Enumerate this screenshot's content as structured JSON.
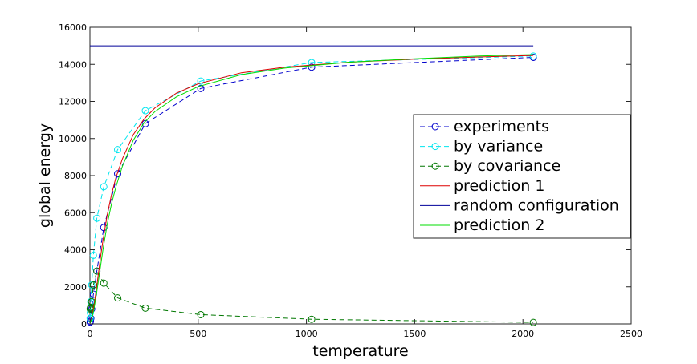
{
  "chart_data": {
    "type": "line",
    "title": "",
    "xlabel": "temperature",
    "ylabel": "global energy",
    "xlim": [
      0,
      2500
    ],
    "ylim": [
      0,
      16000
    ],
    "xticks": [
      0,
      500,
      1000,
      1500,
      2000,
      2500
    ],
    "yticks": [
      0,
      2000,
      4000,
      6000,
      8000,
      10000,
      12000,
      14000,
      16000
    ],
    "grid": false,
    "legend_position": "right",
    "series": [
      {
        "name": "experiments",
        "color": "#0000cc",
        "style": "dashed",
        "marker": "circle",
        "x": [
          1,
          2,
          4,
          8,
          16,
          32,
          64,
          128,
          256,
          512,
          1024,
          2048
        ],
        "y": [
          100,
          150,
          300,
          800,
          1600,
          2850,
          5200,
          8100,
          10800,
          12700,
          13850,
          14380
        ]
      },
      {
        "name": "by variance",
        "color": "#00e5ee",
        "style": "dashed",
        "marker": "circle",
        "x": [
          1,
          2,
          4,
          8,
          16,
          32,
          64,
          128,
          256,
          512,
          1024,
          2048
        ],
        "y": [
          300,
          600,
          1200,
          2100,
          3700,
          5700,
          7400,
          9400,
          11500,
          13100,
          14100,
          14450
        ]
      },
      {
        "name": "by covariance",
        "color": "#007700",
        "style": "dashed",
        "marker": "circle",
        "x": [
          1,
          2,
          4,
          8,
          16,
          32,
          64,
          128,
          256,
          512,
          1024,
          2048
        ],
        "y": [
          800,
          850,
          900,
          1200,
          2100,
          2850,
          2200,
          1400,
          850,
          500,
          250,
          80
        ]
      },
      {
        "name": "prediction 1",
        "color": "#dd0000",
        "style": "solid",
        "marker": "none",
        "x": [
          1,
          5,
          10,
          20,
          30,
          40,
          50,
          60,
          70,
          80,
          100,
          120,
          150,
          200,
          250,
          300,
          400,
          500,
          700,
          900,
          1200,
          1500,
          1800,
          2048
        ],
        "y": [
          50,
          200,
          450,
          1100,
          1900,
          2800,
          3700,
          4500,
          5200,
          5900,
          7000,
          7900,
          8900,
          10200,
          11050,
          11650,
          12450,
          12950,
          13550,
          13850,
          14120,
          14280,
          14400,
          14480
        ]
      },
      {
        "name": "random configuration",
        "color": "#000099",
        "style": "solid",
        "marker": "none",
        "x": [
          0,
          2048
        ],
        "y": [
          15000,
          15000
        ]
      },
      {
        "name": "prediction 2",
        "color": "#00dd00",
        "style": "solid",
        "marker": "none",
        "x": [
          1,
          5,
          10,
          20,
          30,
          40,
          50,
          60,
          70,
          80,
          100,
          120,
          150,
          200,
          250,
          300,
          400,
          500,
          700,
          900,
          1200,
          1500,
          1800,
          2048
        ],
        "y": [
          50,
          150,
          350,
          900,
          1600,
          2400,
          3200,
          4000,
          4700,
          5400,
          6500,
          7400,
          8500,
          9900,
          10850,
          11450,
          12250,
          12800,
          13450,
          13800,
          14120,
          14300,
          14450,
          14530
        ]
      }
    ]
  }
}
